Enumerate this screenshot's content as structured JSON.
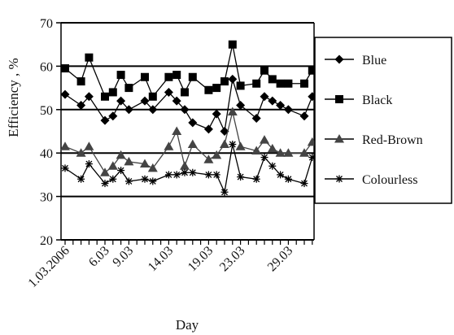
{
  "chart_data": {
    "type": "line",
    "title": "",
    "xlabel": "Day",
    "ylabel": "Efficiency , %",
    "ylim": [
      20,
      70
    ],
    "yticks": [
      20,
      30,
      40,
      50,
      60,
      70
    ],
    "xlim": [
      1,
      32
    ],
    "xticks": [
      "1.03.2006",
      "6.03",
      "9.03",
      "14.03",
      "19.03",
      "23.03",
      "29.03"
    ],
    "xtick_days": [
      1,
      6,
      9,
      14,
      19,
      23,
      29
    ],
    "grid": "horizontal",
    "legend_position": "right",
    "x": [
      1,
      3,
      4,
      6,
      7,
      8,
      9,
      11,
      12,
      14,
      15,
      16,
      17,
      19,
      20,
      21,
      22,
      23,
      25,
      26,
      27,
      28,
      29,
      31,
      32
    ],
    "series": [
      {
        "name": "Blue",
        "marker": "diamond",
        "values": [
          53.5,
          51,
          53,
          47.5,
          48.5,
          52,
          50,
          52,
          50,
          54,
          52,
          50,
          47,
          45.5,
          49,
          45,
          57,
          51,
          48,
          53,
          52,
          51,
          50,
          48.5,
          53
        ]
      },
      {
        "name": "Black",
        "marker": "square",
        "values": [
          59.5,
          56.5,
          62,
          53,
          54,
          58,
          55,
          57.5,
          53,
          57.5,
          58,
          54,
          57.5,
          54.5,
          55,
          56.5,
          65,
          55.5,
          56,
          59,
          57,
          56,
          56,
          56,
          59
        ]
      },
      {
        "name": "Red-Brown",
        "marker": "triangle",
        "values": [
          41.5,
          40,
          41.5,
          35.5,
          37,
          39.5,
          38,
          37.5,
          36.5,
          41.5,
          45,
          37,
          42,
          38.5,
          39.5,
          42,
          49.5,
          41.5,
          40.5,
          43,
          41,
          40,
          40,
          40,
          42.5
        ]
      },
      {
        "name": "Colourless",
        "marker": "asterisk",
        "values": [
          36.5,
          34,
          37.5,
          33,
          34,
          36,
          33.5,
          34,
          33.5,
          35,
          35,
          35.5,
          35.5,
          35,
          35,
          31,
          42,
          34.5,
          34,
          39,
          37,
          35,
          34,
          33,
          39
        ]
      }
    ]
  }
}
